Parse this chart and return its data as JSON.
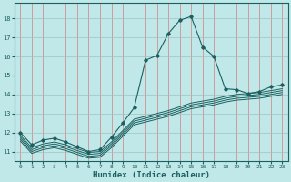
{
  "xlabel": "Humidex (Indice chaleur)",
  "ylabel": "",
  "xlim": [
    -0.5,
    23.5
  ],
  "ylim": [
    10.5,
    18.8
  ],
  "yticks": [
    11,
    12,
    13,
    14,
    15,
    16,
    17,
    18
  ],
  "xticks": [
    0,
    1,
    2,
    3,
    4,
    5,
    6,
    7,
    8,
    9,
    10,
    11,
    12,
    13,
    14,
    15,
    16,
    17,
    18,
    19,
    20,
    21,
    22,
    23
  ],
  "background_color": "#c0e8e8",
  "grid_color_v": "#d08080",
  "grid_color_h": "#c8d8d8",
  "line_color": "#1a6060",
  "figsize": [
    3.2,
    2.0
  ],
  "dpi": 100,
  "main_line": {
    "x": [
      0,
      1,
      2,
      3,
      4,
      5,
      6,
      7,
      8,
      9,
      10,
      11,
      12,
      13,
      14,
      15,
      16,
      17,
      18,
      19,
      20,
      21,
      22,
      23
    ],
    "y": [
      12.0,
      11.35,
      11.6,
      11.7,
      11.5,
      11.25,
      11.0,
      11.1,
      11.75,
      12.5,
      13.3,
      15.8,
      16.05,
      17.2,
      17.9,
      18.1,
      16.5,
      16.0,
      14.3,
      14.25,
      14.05,
      14.15,
      14.4,
      14.5
    ]
  },
  "parallel_lines": [
    {
      "x": [
        0,
        1,
        2,
        3,
        4,
        5,
        6,
        7,
        8,
        9,
        10,
        11,
        12,
        13,
        14,
        15,
        16,
        17,
        18,
        19,
        20,
        21,
        22,
        23
      ],
      "y": [
        11.85,
        11.2,
        11.4,
        11.5,
        11.35,
        11.15,
        10.95,
        11.0,
        11.5,
        12.1,
        12.7,
        12.85,
        13.0,
        13.15,
        13.35,
        13.55,
        13.65,
        13.75,
        13.9,
        14.0,
        14.05,
        14.1,
        14.2,
        14.3
      ]
    },
    {
      "x": [
        0,
        1,
        2,
        3,
        4,
        5,
        6,
        7,
        8,
        9,
        10,
        11,
        12,
        13,
        14,
        15,
        16,
        17,
        18,
        19,
        20,
        21,
        22,
        23
      ],
      "y": [
        11.75,
        11.1,
        11.3,
        11.4,
        11.25,
        11.05,
        10.85,
        10.9,
        11.4,
        12.0,
        12.6,
        12.75,
        12.9,
        13.05,
        13.25,
        13.45,
        13.55,
        13.65,
        13.8,
        13.9,
        13.95,
        14.0,
        14.1,
        14.2
      ]
    },
    {
      "x": [
        0,
        1,
        2,
        3,
        4,
        5,
        6,
        7,
        8,
        9,
        10,
        11,
        12,
        13,
        14,
        15,
        16,
        17,
        18,
        19,
        20,
        21,
        22,
        23
      ],
      "y": [
        11.65,
        11.0,
        11.2,
        11.3,
        11.15,
        10.95,
        10.75,
        10.8,
        11.3,
        11.9,
        12.5,
        12.65,
        12.8,
        12.95,
        13.15,
        13.35,
        13.45,
        13.55,
        13.7,
        13.8,
        13.85,
        13.9,
        14.0,
        14.1
      ]
    },
    {
      "x": [
        0,
        1,
        2,
        3,
        4,
        5,
        6,
        7,
        8,
        9,
        10,
        11,
        12,
        13,
        14,
        15,
        16,
        17,
        18,
        19,
        20,
        21,
        22,
        23
      ],
      "y": [
        11.55,
        10.9,
        11.1,
        11.2,
        11.05,
        10.85,
        10.65,
        10.7,
        11.2,
        11.8,
        12.4,
        12.55,
        12.7,
        12.85,
        13.05,
        13.25,
        13.35,
        13.45,
        13.6,
        13.7,
        13.75,
        13.8,
        13.9,
        14.0
      ]
    }
  ]
}
